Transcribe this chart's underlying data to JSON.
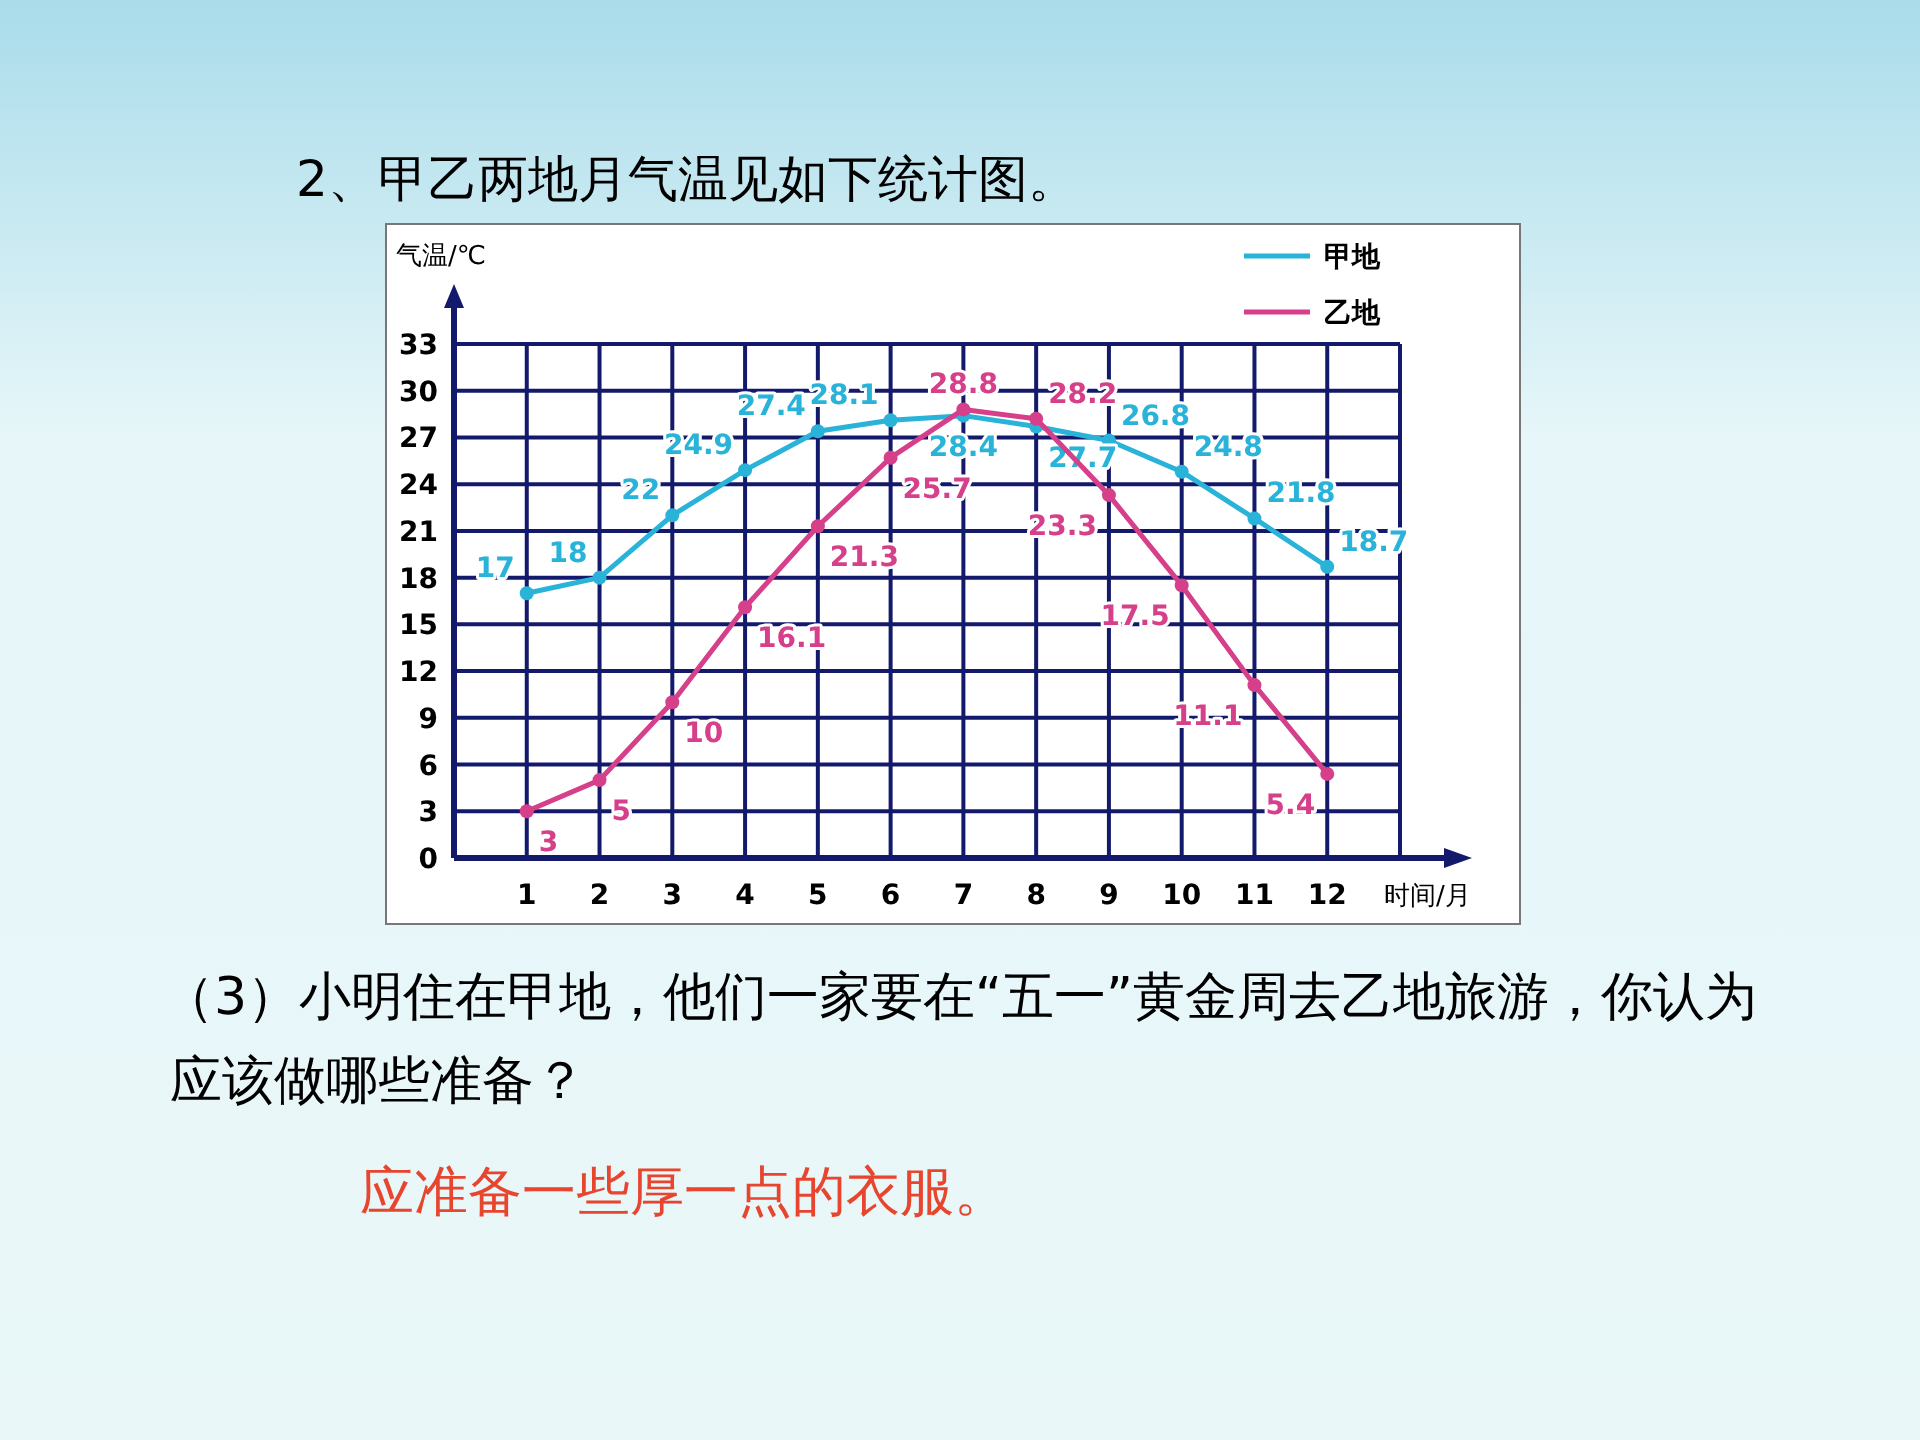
{
  "chart_data": {
    "type": "line",
    "title": "2、甲乙两地月气温见如下统计图。",
    "xlabel": "时间/月",
    "ylabel": "气温/℃",
    "categories": [
      "1",
      "2",
      "3",
      "4",
      "5",
      "6",
      "7",
      "8",
      "9",
      "10",
      "11",
      "12"
    ],
    "series": [
      {
        "name": "甲地",
        "color": "#29b3d9",
        "values": [
          17,
          18,
          22,
          24.9,
          27.4,
          28.1,
          28.4,
          27.7,
          26.8,
          24.8,
          21.8,
          18.7
        ]
      },
      {
        "name": "乙地",
        "color": "#d63f8a",
        "values": [
          3,
          5,
          10,
          16.1,
          21.3,
          25.7,
          28.8,
          28.2,
          23.3,
          17.5,
          11.1,
          5.4
        ]
      }
    ],
    "ylim": [
      0,
      33
    ],
    "yticks": [
      0,
      3,
      6,
      9,
      12,
      15,
      18,
      21,
      24,
      27,
      30,
      33
    ],
    "grid": true,
    "legend": "top right",
    "marker": "circle",
    "line_style": "solid",
    "data_labels": true,
    "annotations": [
      "（3）小明住在甲地，他们一家要在“五一”黄金周去乙地旅游，你认为应该做哪些准备？",
      "应准备一些厚一点的衣服。"
    ]
  }
}
